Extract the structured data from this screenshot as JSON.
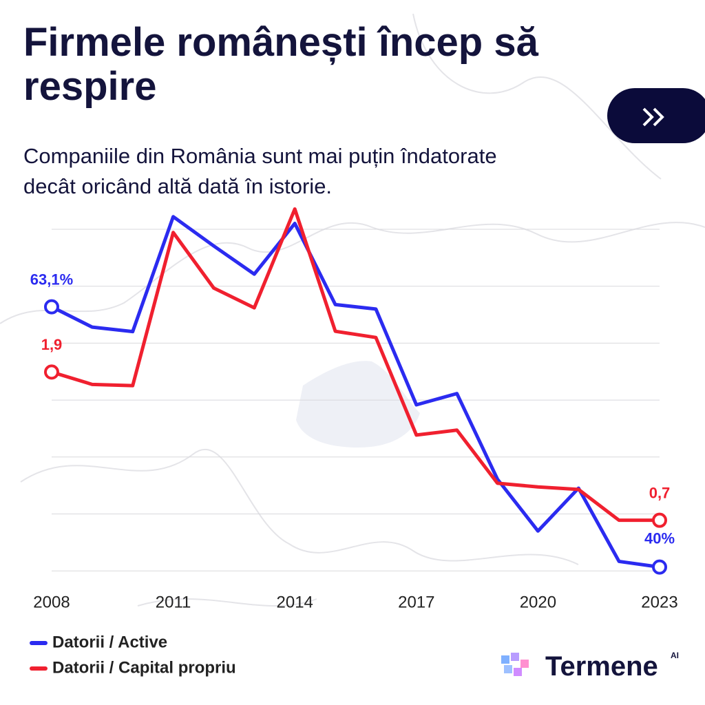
{
  "chart_data": {
    "type": "line",
    "title": "Firmele românești încep să respire",
    "subtitle": "Companiile din România sunt mai puțin îndatorate decât oricând altă dată în istorie.",
    "brand": "Termene",
    "brand_badge": "AI",
    "x": [
      2008,
      2009,
      2010,
      2011,
      2012,
      2013,
      2014,
      2015,
      2016,
      2017,
      2018,
      2019,
      2020,
      2021,
      2022,
      2023
    ],
    "xlim": [
      2008,
      2023
    ],
    "xticks": [
      2008,
      2011,
      2014,
      2017,
      2020,
      2023
    ],
    "ylim": [
      39,
      72
    ],
    "y2lim": [
      0.23,
      3.24
    ],
    "grid": true,
    "series": [
      {
        "name": "Datorii / Active",
        "color": "#2b2bf0",
        "values": [
          63.1,
          61.3,
          60.9,
          71.1,
          68.5,
          66.0,
          70.5,
          63.3,
          62.9,
          54.4,
          55.4,
          47.8,
          43.2,
          47.0,
          40.5,
          40
        ],
        "value_labels": [
          "63,1%",
          null,
          null,
          null,
          null,
          null,
          null,
          null,
          null,
          null,
          null,
          null,
          null,
          null,
          null,
          "40%"
        ]
      },
      {
        "name": "Datorii / Capital propriu",
        "color": "#f0202f",
        "axis": "y2",
        "values": [
          1.9,
          1.8,
          1.79,
          3.03,
          2.58,
          2.42,
          3.22,
          2.23,
          2.18,
          1.39,
          1.43,
          1.0,
          0.97,
          0.95,
          0.7,
          0.7
        ],
        "value_labels": [
          "1,9",
          null,
          null,
          null,
          null,
          null,
          null,
          null,
          null,
          null,
          null,
          null,
          null,
          null,
          null,
          "0,7"
        ]
      }
    ]
  }
}
